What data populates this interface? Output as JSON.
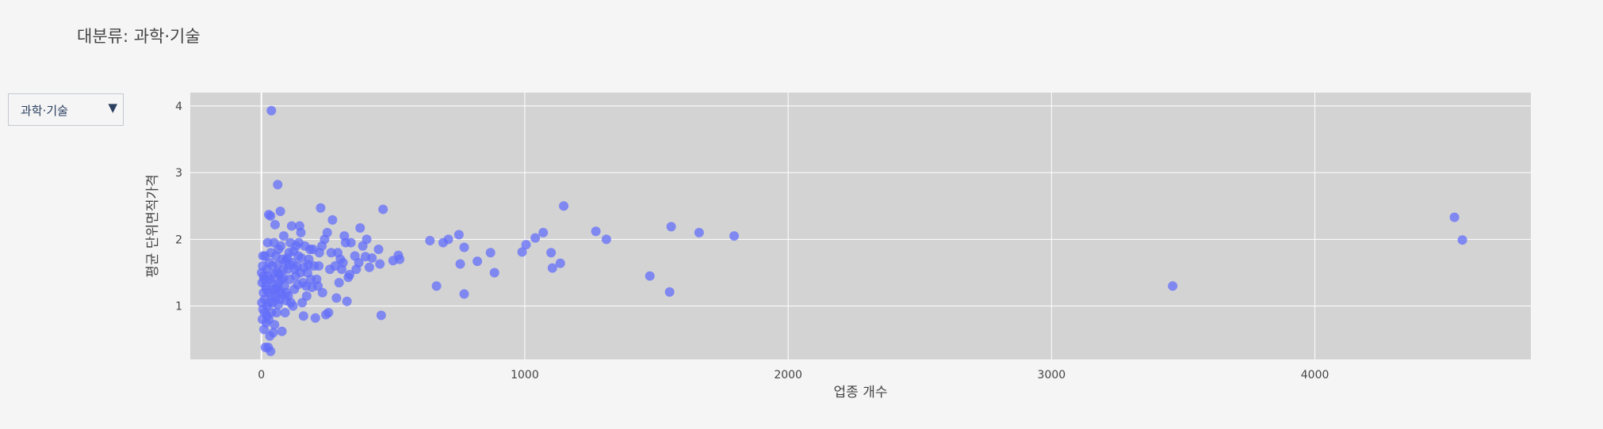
{
  "title": "대분류: 과학·기술",
  "dropdown": {
    "selected": "과학·기술",
    "arrow_icon": "triangle-down-icon"
  },
  "colors": {
    "background": "#f5f5f5",
    "plot_bg": "#d3d3d3",
    "grid": "#ffffff",
    "marker": "#636efa"
  },
  "chart_data": {
    "type": "scatter",
    "xlabel": "업종 개수",
    "ylabel": "평균 단위면적가격",
    "xlim": [
      -270,
      4820
    ],
    "ylim": [
      0.2,
      4.2
    ],
    "xticks": [
      0,
      1000,
      2000,
      3000,
      4000
    ],
    "yticks": [
      1,
      2,
      3,
      4
    ],
    "grid": true,
    "series": [
      {
        "points": [
          [
            38,
            3.93
          ],
          [
            62,
            2.82
          ],
          [
            72,
            2.42
          ],
          [
            28,
            2.37
          ],
          [
            35,
            2.35
          ],
          [
            225,
            2.47
          ],
          [
            270,
            2.29
          ],
          [
            462,
            2.45
          ],
          [
            1148,
            2.5
          ],
          [
            1270,
            2.12
          ],
          [
            1310,
            2.0
          ],
          [
            1556,
            2.19
          ],
          [
            1662,
            2.1
          ],
          [
            1795,
            2.05
          ],
          [
            4530,
            2.33
          ],
          [
            4560,
            1.99
          ],
          [
            3460,
            1.3
          ],
          [
            640,
            1.98
          ],
          [
            690,
            1.95
          ],
          [
            710,
            2.0
          ],
          [
            750,
            2.07
          ],
          [
            770,
            1.88
          ],
          [
            755,
            1.63
          ],
          [
            820,
            1.67
          ],
          [
            870,
            1.8
          ],
          [
            885,
            1.5
          ],
          [
            990,
            1.81
          ],
          [
            1005,
            1.92
          ],
          [
            1040,
            2.02
          ],
          [
            1070,
            2.1
          ],
          [
            1100,
            1.8
          ],
          [
            1105,
            1.57
          ],
          [
            1135,
            1.64
          ],
          [
            1475,
            1.45
          ],
          [
            1550,
            1.21
          ],
          [
            770,
            1.18
          ],
          [
            665,
            1.3
          ],
          [
            455,
            0.86
          ],
          [
            500,
            1.68
          ],
          [
            520,
            1.76
          ],
          [
            525,
            1.7
          ],
          [
            445,
            1.85
          ],
          [
            410,
            1.58
          ],
          [
            450,
            1.63
          ],
          [
            395,
            1.74
          ],
          [
            400,
            2.0
          ],
          [
            385,
            1.9
          ],
          [
            375,
            2.17
          ],
          [
            360,
            1.55
          ],
          [
            340,
            1.95
          ],
          [
            335,
            1.47
          ],
          [
            330,
            1.43
          ],
          [
            320,
            1.95
          ],
          [
            315,
            2.05
          ],
          [
            310,
            1.65
          ],
          [
            305,
            1.55
          ],
          [
            300,
            1.7
          ],
          [
            295,
            1.35
          ],
          [
            290,
            1.8
          ],
          [
            285,
            1.12
          ],
          [
            325,
            1.07
          ],
          [
            260,
            1.55
          ],
          [
            255,
            0.9
          ],
          [
            245,
            0.87
          ],
          [
            250,
            2.1
          ],
          [
            240,
            2.0
          ],
          [
            230,
            1.9
          ],
          [
            220,
            1.8
          ],
          [
            215,
            1.3
          ],
          [
            210,
            1.4
          ],
          [
            200,
            1.6
          ],
          [
            185,
            1.85
          ],
          [
            180,
            1.7
          ],
          [
            175,
            1.5
          ],
          [
            170,
            1.3
          ],
          [
            165,
            1.9
          ],
          [
            160,
            0.85
          ],
          [
            155,
            1.05
          ],
          [
            150,
            2.1
          ],
          [
            145,
            2.2
          ],
          [
            140,
            1.75
          ],
          [
            135,
            1.6
          ],
          [
            130,
            1.45
          ],
          [
            125,
            1.25
          ],
          [
            120,
            1.0
          ],
          [
            115,
            2.2
          ],
          [
            110,
            1.95
          ],
          [
            105,
            1.8
          ],
          [
            100,
            1.55
          ],
          [
            95,
            1.2
          ],
          [
            90,
            0.9
          ],
          [
            85,
            2.05
          ],
          [
            80,
            1.7
          ],
          [
            78,
            0.62
          ],
          [
            75,
            1.4
          ],
          [
            70,
            1.1
          ],
          [
            65,
            1.85
          ],
          [
            60,
            1.5
          ],
          [
            55,
            1.25
          ],
          [
            52,
            2.22
          ],
          [
            50,
            0.72
          ],
          [
            48,
            1.95
          ],
          [
            45,
            0.6
          ],
          [
            42,
            1.6
          ],
          [
            40,
            1.15
          ],
          [
            38,
            0.9
          ],
          [
            36,
            1.8
          ],
          [
            34,
            1.4
          ],
          [
            32,
            0.55
          ],
          [
            30,
            1.65
          ],
          [
            28,
            1.2
          ],
          [
            26,
            0.38
          ],
          [
            24,
            1.95
          ],
          [
            22,
            0.85
          ],
          [
            20,
            1.55
          ],
          [
            18,
            0.75
          ],
          [
            16,
            1.3
          ],
          [
            14,
            1.75
          ],
          [
            12,
            1.1
          ],
          [
            10,
            0.65
          ],
          [
            8,
            1.45
          ],
          [
            6,
            0.95
          ],
          [
            5,
            1.6
          ],
          [
            4,
            0.8
          ],
          [
            3,
            1.35
          ],
          [
            2,
            1.05
          ],
          [
            1,
            1.5
          ],
          [
            35,
            0.32
          ],
          [
            15,
            0.38
          ],
          [
            22,
            1.0
          ],
          [
            28,
            0.8
          ],
          [
            44,
            1.05
          ],
          [
            58,
            0.9
          ],
          [
            66,
            1.35
          ],
          [
            88,
            1.3
          ],
          [
            102,
            1.15
          ],
          [
            118,
            1.65
          ],
          [
            132,
            1.9
          ],
          [
            148,
            1.5
          ],
          [
            158,
            1.35
          ],
          [
            172,
            1.15
          ],
          [
            188,
            1.4
          ],
          [
            196,
            1.85
          ],
          [
            205,
            0.82
          ],
          [
            218,
            1.6
          ],
          [
            232,
            1.2
          ],
          [
            265,
            1.8
          ],
          [
            280,
            1.6
          ],
          [
            355,
            1.75
          ],
          [
            370,
            1.65
          ],
          [
            420,
            1.72
          ],
          [
            55,
            1.75
          ],
          [
            62,
            1.62
          ],
          [
            68,
            1.48
          ],
          [
            74,
            1.9
          ],
          [
            82,
            1.55
          ],
          [
            92,
            1.68
          ],
          [
            108,
            1.4
          ],
          [
            112,
            1.05
          ],
          [
            122,
            1.82
          ],
          [
            128,
            1.55
          ],
          [
            138,
            1.32
          ],
          [
            142,
            1.95
          ],
          [
            152,
            1.72
          ],
          [
            162,
            1.58
          ],
          [
            178,
            1.62
          ],
          [
            192,
            1.28
          ],
          [
            18,
            1.25
          ],
          [
            24,
            1.45
          ],
          [
            30,
            1.05
          ],
          [
            40,
            1.35
          ],
          [
            46,
            1.25
          ],
          [
            50,
            1.48
          ],
          [
            54,
            1.12
          ],
          [
            60,
            1.28
          ],
          [
            64,
            1.02
          ],
          [
            72,
            1.22
          ],
          [
            76,
            1.18
          ],
          [
            84,
            1.42
          ],
          [
            94,
            1.08
          ],
          [
            98,
            1.72
          ],
          [
            106,
            1.62
          ],
          [
            12,
            0.9
          ],
          [
            8,
            1.2
          ],
          [
            6,
            1.75
          ],
          [
            10,
            1.4
          ]
        ]
      }
    ]
  }
}
